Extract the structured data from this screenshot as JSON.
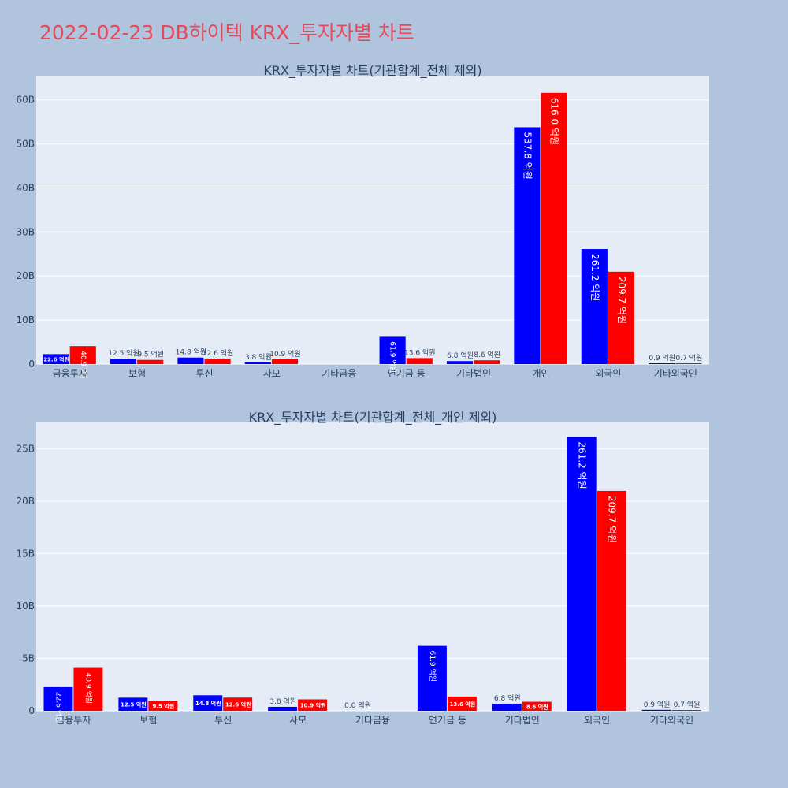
{
  "page": {
    "title": "2022-02-23 DB하이텍 KRX_투자자별 차트"
  },
  "colors": {
    "background": "#b0c4de",
    "plot_bg": "#e5ecf6",
    "title": "#e8495a",
    "series1": "#0000ff",
    "series2": "#ff0000"
  },
  "chart_data": [
    {
      "type": "bar",
      "title": "KRX_투자자별 차트(기관합계_전체 제외)",
      "categories": [
        "금융투자",
        "보험",
        "투신",
        "사모",
        "기타금융",
        "연기금 등",
        "기타법인",
        "개인",
        "외국인",
        "기타외국인"
      ],
      "series": [
        {
          "color": "#0000ff",
          "values": [
            2.26,
            1.25,
            1.48,
            0.38,
            0,
            6.19,
            0.68,
            53.78,
            26.12,
            0.09
          ],
          "labels": [
            "22.6 억원",
            "12.5 억원",
            "14.8 억원",
            "3.8 억원",
            "",
            "61.9 억원",
            "6.8 억원",
            "537.8 억원",
            "261.2 억원",
            "0.9 억원"
          ]
        },
        {
          "color": "#ff0000",
          "values": [
            4.09,
            0.95,
            1.26,
            1.09,
            0,
            1.36,
            0.86,
            61.6,
            20.97,
            0.07
          ],
          "labels": [
            "40.9 억원",
            "9.5 억원",
            "12.6 억원",
            "10.9 억원",
            "",
            "13.6 억원",
            "8.6 억원",
            "616.0 억원",
            "209.7 억원",
            "0.7 억원"
          ]
        }
      ],
      "yticks": [
        "0",
        "10B",
        "20B",
        "30B",
        "40B",
        "50B",
        "60B"
      ],
      "ytick_values": [
        0,
        10,
        20,
        30,
        40,
        50,
        60
      ],
      "ylim": [
        0,
        65.5
      ],
      "grid": true
    },
    {
      "type": "bar",
      "title": "KRX_투자자별 차트(기관합계_전체_개인 제외)",
      "categories": [
        "금융투자",
        "보험",
        "투신",
        "사모",
        "기타금융",
        "연기금 등",
        "기타법인",
        "외국인",
        "기타외국인"
      ],
      "series": [
        {
          "color": "#0000ff",
          "values": [
            2.26,
            1.25,
            1.48,
            0.38,
            0,
            6.19,
            0.68,
            26.12,
            0.09
          ],
          "labels": [
            "22.6 억원",
            "12.5 억원",
            "14.8 억원",
            "3.8 억원",
            "0.0 억원",
            "61.9 억원",
            "6.8 억원",
            "261.2 억원",
            "0.9 억원"
          ]
        },
        {
          "color": "#ff0000",
          "values": [
            4.09,
            0.95,
            1.26,
            1.09,
            0,
            1.36,
            0.86,
            20.97,
            0.07
          ],
          "labels": [
            "40.9 억원",
            "9.5 억원",
            "12.6 억원",
            "10.9 억원",
            "",
            "13.6 억원",
            "8.6 억원",
            "209.7 억원",
            "0.7 억원"
          ]
        }
      ],
      "yticks": [
        "0",
        "5B",
        "10B",
        "15B",
        "20B",
        "25B"
      ],
      "ytick_values": [
        0,
        5,
        10,
        15,
        20,
        25
      ],
      "ylim": [
        0,
        27.5
      ],
      "grid": true
    }
  ]
}
